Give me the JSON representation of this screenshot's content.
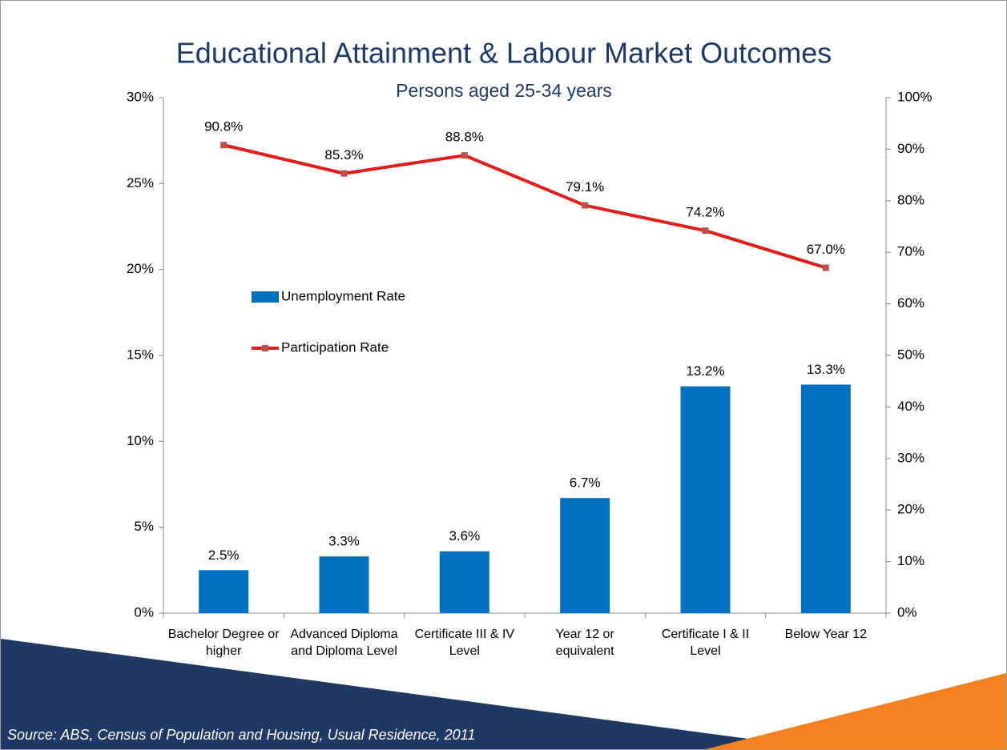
{
  "chart_data": {
    "type": "bar_line",
    "title": "Educational Attainment & Labour Market Outcomes",
    "subtitle": "Persons aged 25-34 years",
    "categories": [
      "Bachelor Degree or higher",
      "Advanced Diploma and Diploma Level",
      "Certificate III & IV Level",
      "Year 12 or equivalent",
      "Certificate I & II Level",
      "Below Year 12"
    ],
    "series": [
      {
        "name": "Unemployment Rate",
        "type": "bar",
        "color": "#0070c0",
        "axis": "y",
        "values": [
          2.5,
          3.3,
          3.6,
          6.7,
          13.2,
          13.3
        ],
        "value_labels": [
          "2.5%",
          "3.3%",
          "3.6%",
          "6.7%",
          "13.2%",
          "13.3%"
        ]
      },
      {
        "name": "Participation Rate",
        "type": "line",
        "color": "#e31c1c",
        "marker_color": "#c0504d",
        "axis": "y2",
        "values": [
          90.8,
          85.3,
          88.8,
          79.1,
          74.2,
          67.0
        ],
        "value_labels": [
          "90.8%",
          "85.3%",
          "88.8%",
          "79.1%",
          "74.2%",
          "67.0%"
        ]
      }
    ],
    "ylim": [
      0,
      30
    ],
    "yticks": [
      {
        "value": 0,
        "label": "0%"
      },
      {
        "value": 5,
        "label": "5%"
      },
      {
        "value": 10,
        "label": "10%"
      },
      {
        "value": 15,
        "label": "15%"
      },
      {
        "value": 20,
        "label": "20%"
      },
      {
        "value": 25,
        "label": "25%"
      },
      {
        "value": 30,
        "label": "30%"
      }
    ],
    "y2lim": [
      0,
      100
    ],
    "y2ticks": [
      {
        "value": 0,
        "label": "0%"
      },
      {
        "value": 10,
        "label": "10%"
      },
      {
        "value": 20,
        "label": "20%"
      },
      {
        "value": 30,
        "label": "30%"
      },
      {
        "value": 40,
        "label": "40%"
      },
      {
        "value": 50,
        "label": "50%"
      },
      {
        "value": 60,
        "label": "60%"
      },
      {
        "value": 70,
        "label": "70%"
      },
      {
        "value": 80,
        "label": "80%"
      },
      {
        "value": 90,
        "label": "90%"
      },
      {
        "value": 100,
        "label": "100%"
      }
    ],
    "grid": false,
    "source": "Source: ABS, Census of Population and Housing, Usual Residence, 2011"
  }
}
